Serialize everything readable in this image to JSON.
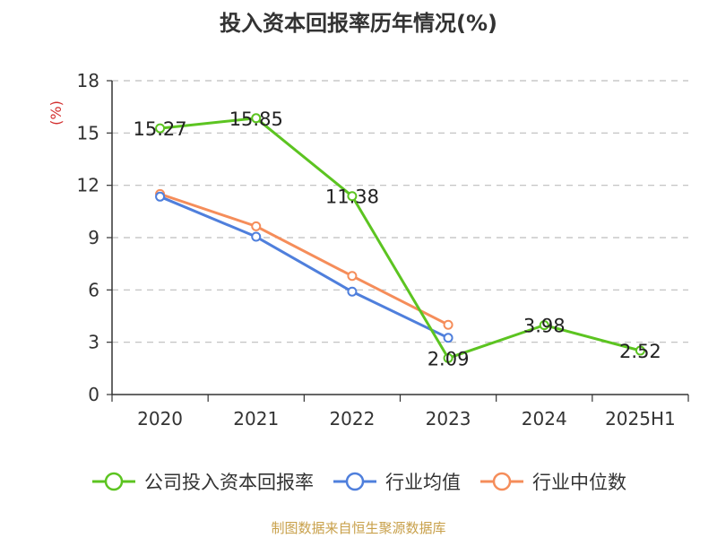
{
  "chart_data": {
    "type": "line",
    "title": "投入资本回报率历年情况(%)",
    "ylabel": "(%)",
    "categories": [
      "2020",
      "2021",
      "2022",
      "2023",
      "2024",
      "2025H1"
    ],
    "ylim": [
      0,
      18
    ],
    "yticks": [
      0,
      3,
      6,
      9,
      12,
      15,
      18
    ],
    "grid": true,
    "legend_position": "bottom",
    "series": [
      {
        "name": "公司投入资本回报率",
        "color": "#5cc421",
        "values": [
          15.27,
          15.85,
          11.38,
          2.09,
          3.98,
          2.52
        ],
        "labels": [
          "15.27",
          "15.85",
          "11.38",
          "2.09",
          "3.98",
          "2.52"
        ]
      },
      {
        "name": "行业均值",
        "color": "#4f7fdc",
        "values": [
          11.35,
          9.05,
          5.9,
          3.25,
          null,
          null
        ]
      },
      {
        "name": "行业中位数",
        "color": "#f58d5a",
        "values": [
          11.5,
          9.65,
          6.8,
          4.0,
          null,
          null
        ]
      }
    ]
  },
  "source": "制图数据来自恒生聚源数据库"
}
